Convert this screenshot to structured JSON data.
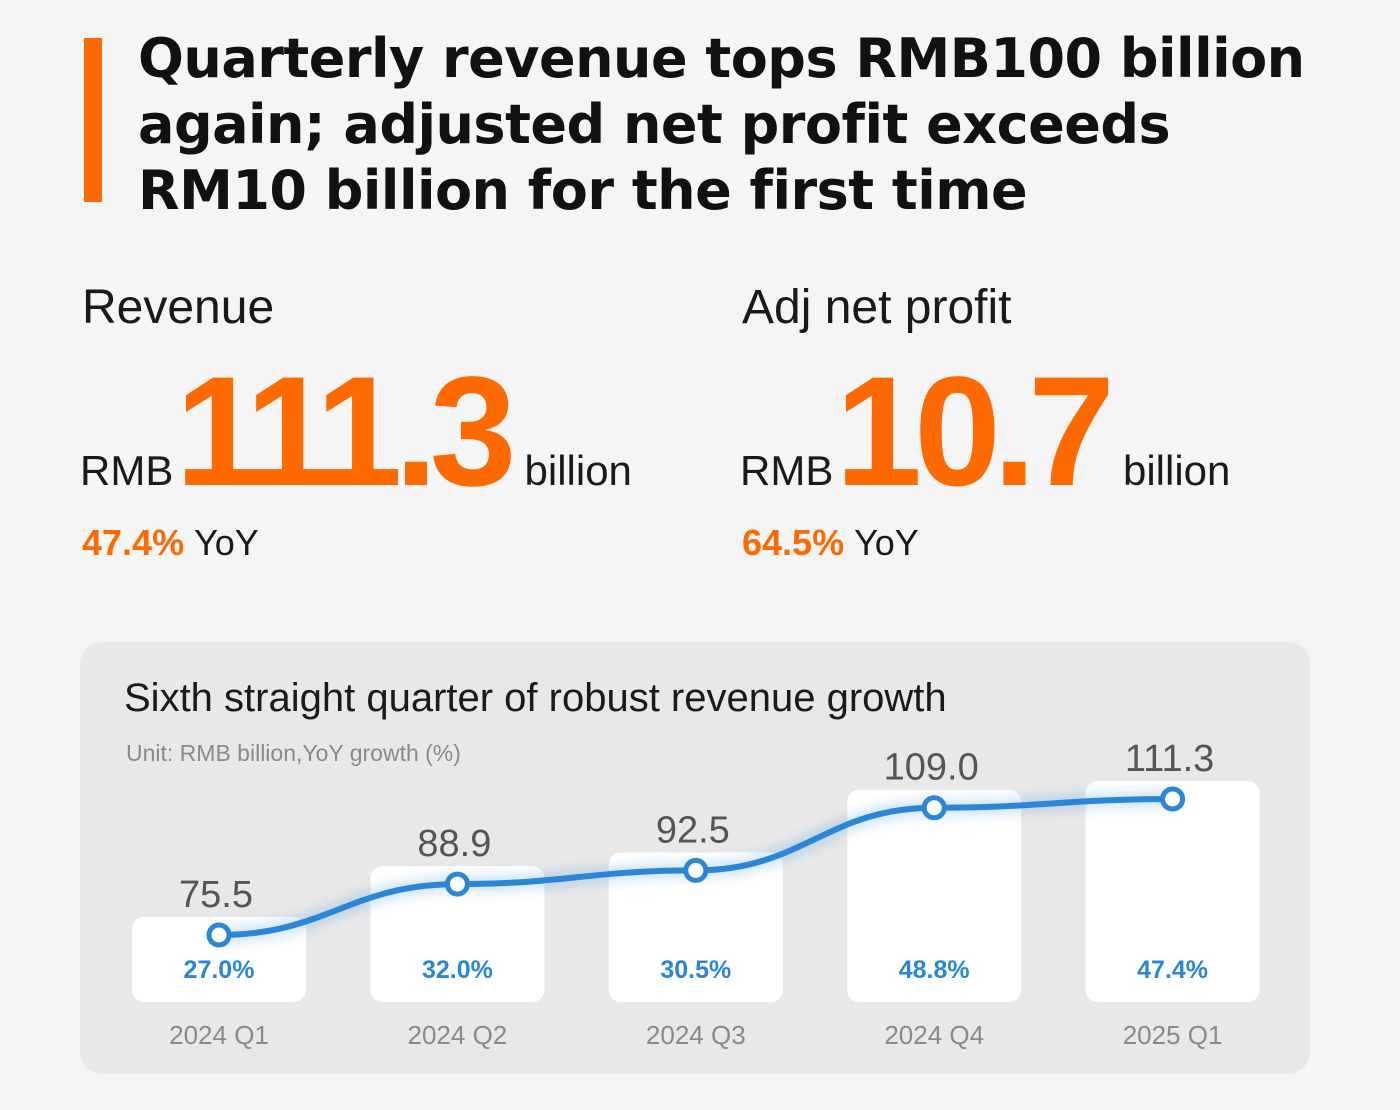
{
  "headline": "Quarterly revenue tops RMB100 billion again; adjusted net profit exceeds RM10 billion for the first time",
  "kpis": [
    {
      "label": "Revenue",
      "currency": "RMB",
      "value": "111.3",
      "unit": "billion",
      "yoy_pct": "47.4%",
      "yoy_label": "YoY"
    },
    {
      "label": "Adj net profit",
      "currency": "RMB",
      "value": "10.7",
      "unit": "billion",
      "yoy_pct": "64.5%",
      "yoy_label": "YoY"
    }
  ],
  "colors": {
    "accent": "#ff6a00",
    "line": "#2a86d6",
    "panel": "#e8e8e8"
  },
  "chart_data": {
    "type": "line",
    "title": "Sixth straight quarter of robust revenue growth",
    "subtitle": "Unit: RMB billion,YoY growth (%)",
    "categories": [
      "2024 Q1",
      "2024 Q2",
      "2024 Q3",
      "2024 Q4",
      "2025 Q1"
    ],
    "series": [
      {
        "name": "Revenue",
        "values": [
          75.5,
          88.9,
          92.5,
          109.0,
          111.3
        ],
        "labels": [
          "75.5",
          "88.9",
          "92.5",
          "109.0",
          "111.3"
        ]
      },
      {
        "name": "YoY growth",
        "values": [
          27.0,
          32.0,
          30.5,
          48.8,
          47.4
        ],
        "labels": [
          "27.0%",
          "32.0%",
          "30.5%",
          "48.8%",
          "47.4%"
        ]
      }
    ],
    "grid": false,
    "legend": "none"
  }
}
